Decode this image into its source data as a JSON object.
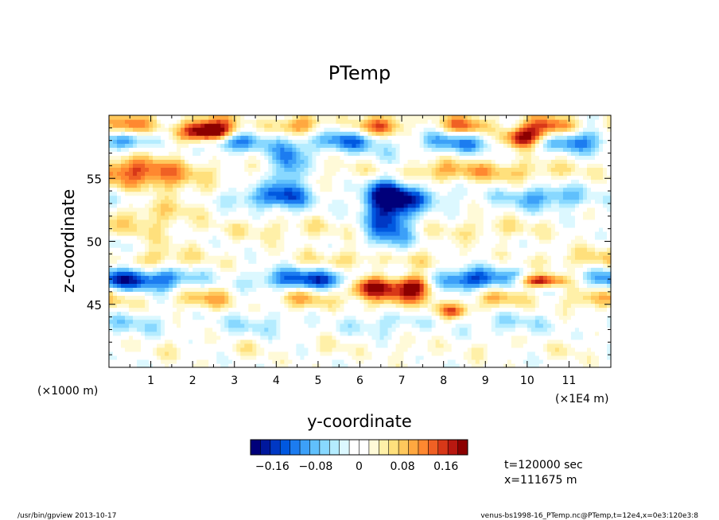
{
  "chart_data": {
    "type": "heatmap",
    "title": "PTemp",
    "xlabel": "y-coordinate",
    "ylabel": "z-coordinate",
    "x_unit_left": "(×1000 m)",
    "x_unit_right": "(×1E4 m)",
    "xlim": [
      0,
      12
    ],
    "ylim": [
      40,
      60
    ],
    "x_ticks": [
      "1",
      "2",
      "3",
      "4",
      "5",
      "6",
      "7",
      "8",
      "9",
      "10",
      "11"
    ],
    "y_ticks": [
      "45",
      "50",
      "55"
    ],
    "colorbar": {
      "range": [
        -0.2,
        0.2
      ],
      "tick_labels": [
        "−0.16",
        "−0.08",
        "0",
        "0.08",
        "0.16"
      ],
      "tick_values": [
        -0.16,
        -0.08,
        0,
        0.08,
        0.16
      ],
      "colors": [
        "#00007a",
        "#00189c",
        "#0038c4",
        "#0058e0",
        "#1c7cf0",
        "#3ca0f8",
        "#60c0fc",
        "#88d8ff",
        "#b4ecff",
        "#dcf8ff",
        "#ffffff",
        "#ffffff",
        "#fffad8",
        "#fff0a8",
        "#ffe07c",
        "#ffc85c",
        "#ffa840",
        "#ff8830",
        "#f06024",
        "#d83818",
        "#b81810",
        "#8c0000"
      ]
    },
    "info_lines": [
      "t=120000 sec",
      "x=111675 m"
    ],
    "bands": [
      {
        "z": 59.2,
        "amp": 0.14,
        "freq": 3.1,
        "phase": 0.3
      },
      {
        "z": 58.0,
        "amp": -0.12,
        "freq": 2.3,
        "phase": 1.1
      },
      {
        "z": 55.6,
        "amp": 0.09,
        "freq": 0.7,
        "phase": 2.0
      },
      {
        "z": 53.5,
        "amp": -0.1,
        "freq": 1.9,
        "phase": 0.6
      },
      {
        "z": 51.0,
        "amp": 0.05,
        "freq": 1.3,
        "phase": 2.4
      },
      {
        "z": 48.6,
        "amp": 0.07,
        "freq": 1.1,
        "phase": 0.9
      },
      {
        "z": 47.0,
        "amp": -0.15,
        "freq": 1.6,
        "phase": 0.2
      },
      {
        "z": 45.5,
        "amp": 0.09,
        "freq": 2.7,
        "phase": 1.7
      },
      {
        "z": 43.5,
        "amp": -0.05,
        "freq": 2.1,
        "phase": 0.4
      },
      {
        "z": 41.5,
        "amp": 0.03,
        "freq": 3.3,
        "phase": 2.9
      }
    ],
    "anomalies": [
      {
        "y": 6.7,
        "z": 52.5,
        "amp": -0.18,
        "wy": 0.55,
        "wz": 3.2
      },
      {
        "y": 6.2,
        "z": 46.4,
        "amp": 0.2,
        "wy": 0.55,
        "wz": 0.9
      },
      {
        "y": 7.3,
        "z": 46.6,
        "amp": 0.2,
        "wy": 0.5,
        "wz": 0.9
      },
      {
        "y": 0.9,
        "z": 54.0,
        "amp": 0.1,
        "wy": 1.2,
        "wz": 3.0
      },
      {
        "y": 2.4,
        "z": 58.6,
        "amp": 0.2,
        "wy": 0.6,
        "wz": 0.7
      },
      {
        "y": 9.9,
        "z": 58.3,
        "amp": 0.2,
        "wy": 0.5,
        "wz": 0.8
      },
      {
        "y": 10.3,
        "z": 46.9,
        "amp": 0.2,
        "wy": 0.6,
        "wz": 0.5
      },
      {
        "y": 8.2,
        "z": 44.5,
        "amp": 0.12,
        "wy": 0.4,
        "wz": 0.6
      },
      {
        "y": 0.2,
        "z": 48.5,
        "amp": -0.07,
        "wy": 0.4,
        "wz": 2.5
      },
      {
        "y": 4.3,
        "z": 56.0,
        "amp": -0.12,
        "wy": 0.4,
        "wz": 3.0
      }
    ]
  },
  "footer": {
    "left": "/usr/bin/gpview   2013-10-17",
    "right": "venus-bs1998-16_PTemp.nc@PTemp,t=12e4,x=0e3:120e3:8"
  }
}
